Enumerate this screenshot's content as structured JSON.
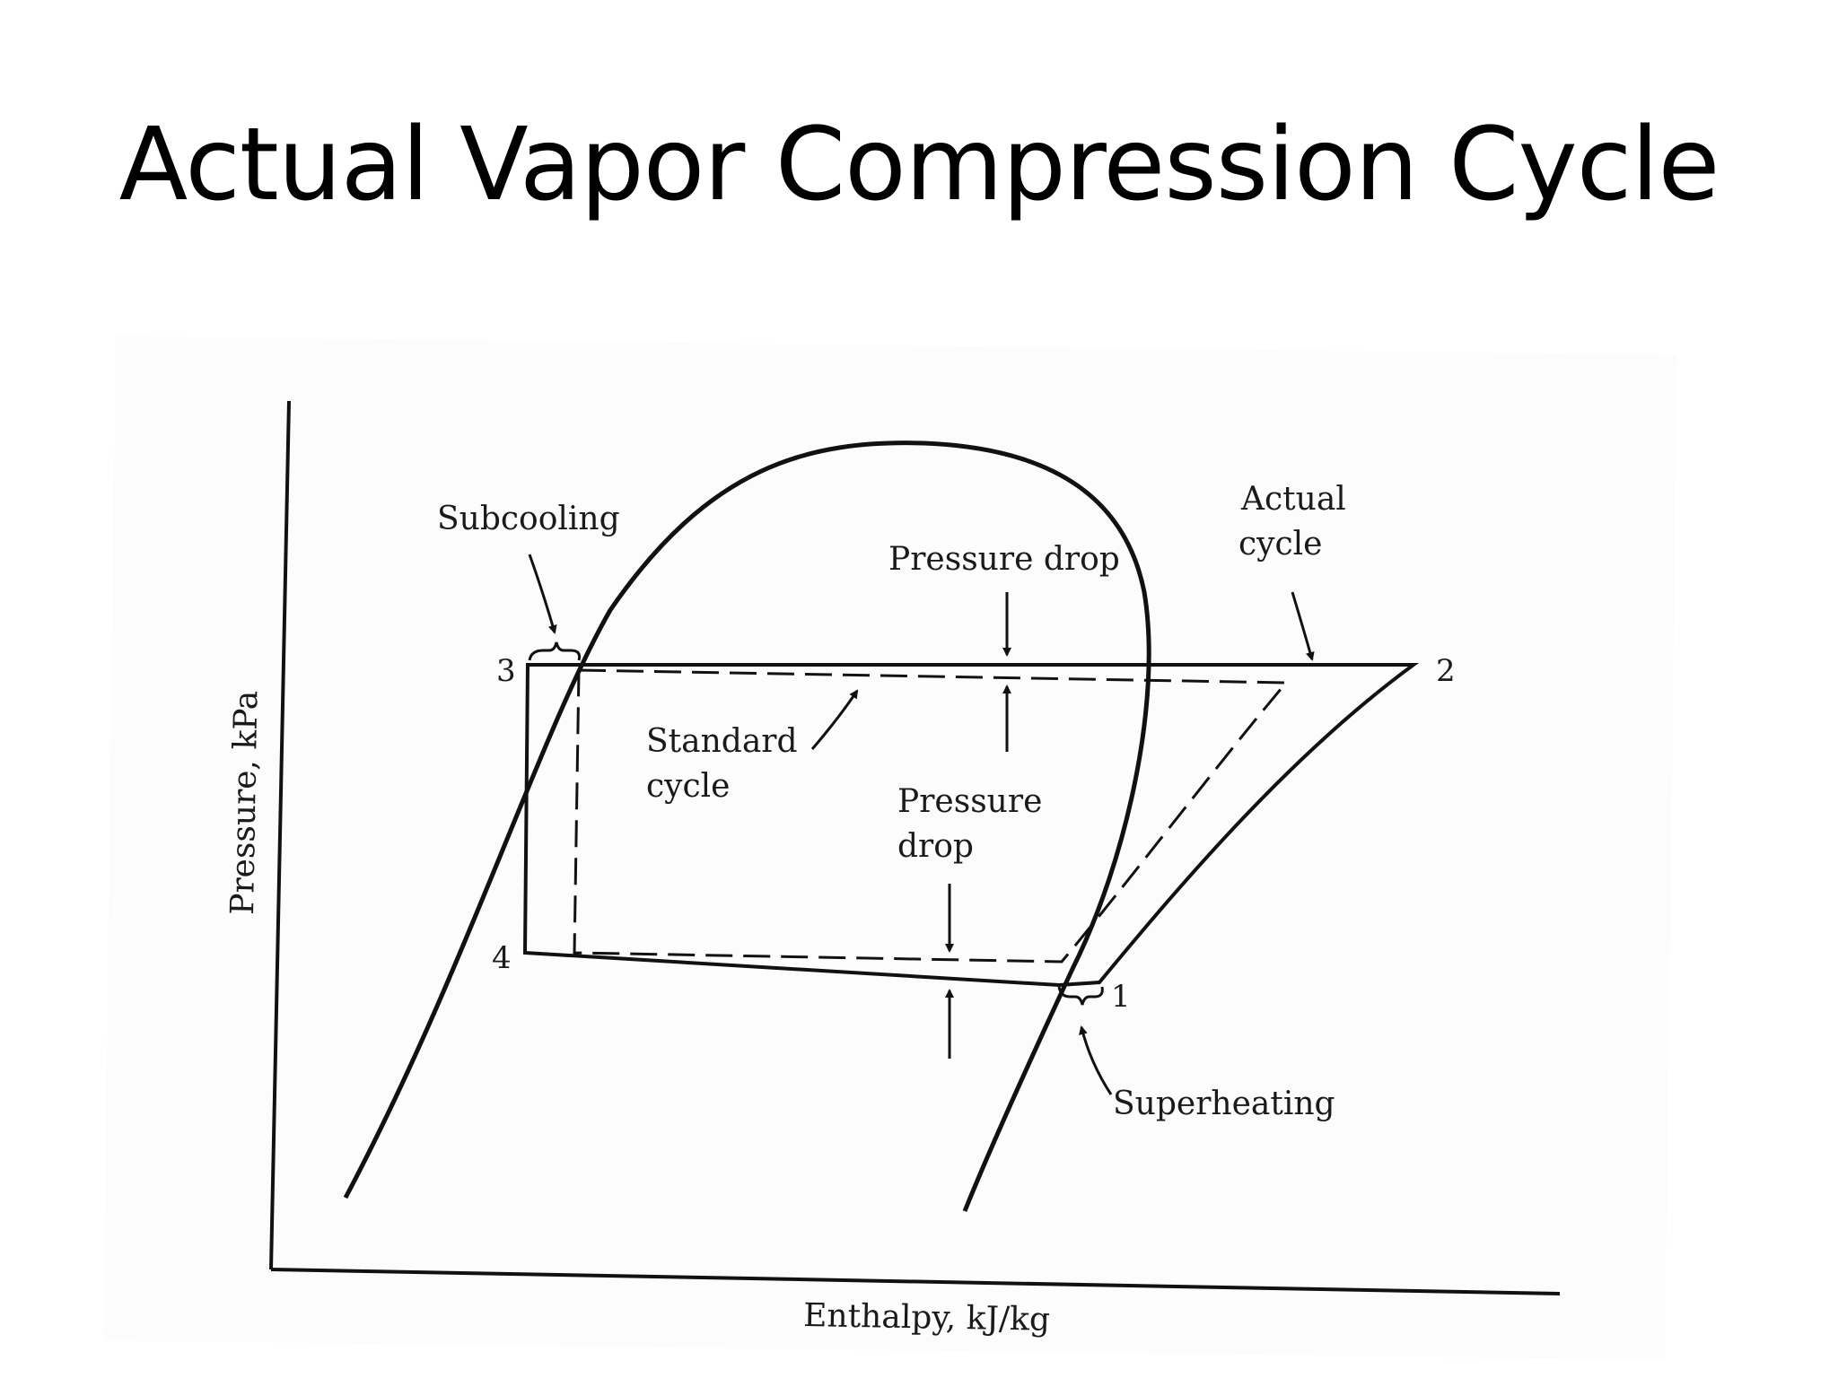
{
  "slide": {
    "title": "Actual Vapor Compression Cycle"
  },
  "diagram": {
    "axes": {
      "x_label": "Enthalpy, kJ/kg",
      "y_label": "Pressure, kPa"
    },
    "state_points": {
      "p1": "1",
      "p2": "2",
      "p3": "3",
      "p4": "4"
    },
    "annotations": {
      "subcooling": "Subcooling",
      "pressure_drop_top": "Pressure drop",
      "actual_cycle_line1": "Actual",
      "actual_cycle_line2": "cycle",
      "standard_cycle_line1": "Standard",
      "standard_cycle_line2": "cycle",
      "pressure_drop_mid_line1": "Pressure",
      "pressure_drop_mid_line2": "drop",
      "superheating": "Superheating"
    }
  }
}
